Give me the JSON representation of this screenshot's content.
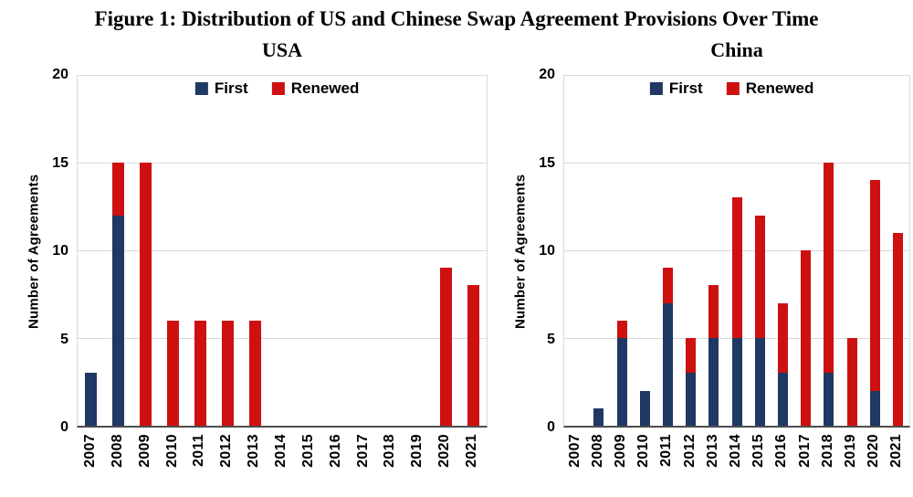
{
  "figure_title": "Figure 1: Distribution of US and Chinese Swap Agreement Provisions Over Time",
  "colors": {
    "first": "#1f3864",
    "renewed": "#ce1010",
    "gridline": "#d9d9d9",
    "axis": "#4d4d4d"
  },
  "chart_data": [
    {
      "type": "bar",
      "stacked": true,
      "title": "USA",
      "ylabel": "Number of Agreements",
      "xlabel": "",
      "ylim": [
        0,
        20
      ],
      "yticks": [
        0,
        5,
        10,
        15,
        20
      ],
      "grid": true,
      "legend_position": "top-center",
      "categories": [
        "2007",
        "2008",
        "2009",
        "2010",
        "2011",
        "2012",
        "2013",
        "2014",
        "2015",
        "2016",
        "2017",
        "2018",
        "2019",
        "2020",
        "2021"
      ],
      "series": [
        {
          "name": "First",
          "color": "#1f3864",
          "values": [
            3,
            12,
            0,
            0,
            0,
            0,
            0,
            0,
            0,
            0,
            0,
            0,
            0,
            0,
            0
          ]
        },
        {
          "name": "Renewed",
          "color": "#ce1010",
          "values": [
            0,
            3,
            15,
            6,
            6,
            6,
            6,
            0,
            0,
            0,
            0,
            0,
            0,
            9,
            8
          ]
        }
      ],
      "totals": [
        3,
        15,
        15,
        6,
        6,
        6,
        6,
        0,
        0,
        0,
        0,
        0,
        0,
        9,
        8
      ]
    },
    {
      "type": "bar",
      "stacked": true,
      "title": "China",
      "ylabel": "Number of Agreements",
      "xlabel": "",
      "ylim": [
        0,
        20
      ],
      "yticks": [
        0,
        5,
        10,
        15,
        20
      ],
      "grid": true,
      "legend_position": "top-center",
      "categories": [
        "2007",
        "2008",
        "2009",
        "2010",
        "2011",
        "2012",
        "2013",
        "2014",
        "2015",
        "2016",
        "2017",
        "2018",
        "2019",
        "2020",
        "2021"
      ],
      "series": [
        {
          "name": "First",
          "color": "#1f3864",
          "values": [
            0,
            1,
            5,
            2,
            7,
            3,
            5,
            5,
            5,
            3,
            0,
            3,
            0,
            2,
            0
          ]
        },
        {
          "name": "Renewed",
          "color": "#ce1010",
          "values": [
            0,
            0,
            1,
            0,
            2,
            2,
            3,
            8,
            7,
            4,
            10,
            12,
            5,
            12,
            11
          ]
        }
      ],
      "totals": [
        0,
        1,
        6,
        2,
        9,
        5,
        8,
        13,
        12,
        7,
        10,
        15,
        5,
        14,
        11
      ]
    }
  ]
}
